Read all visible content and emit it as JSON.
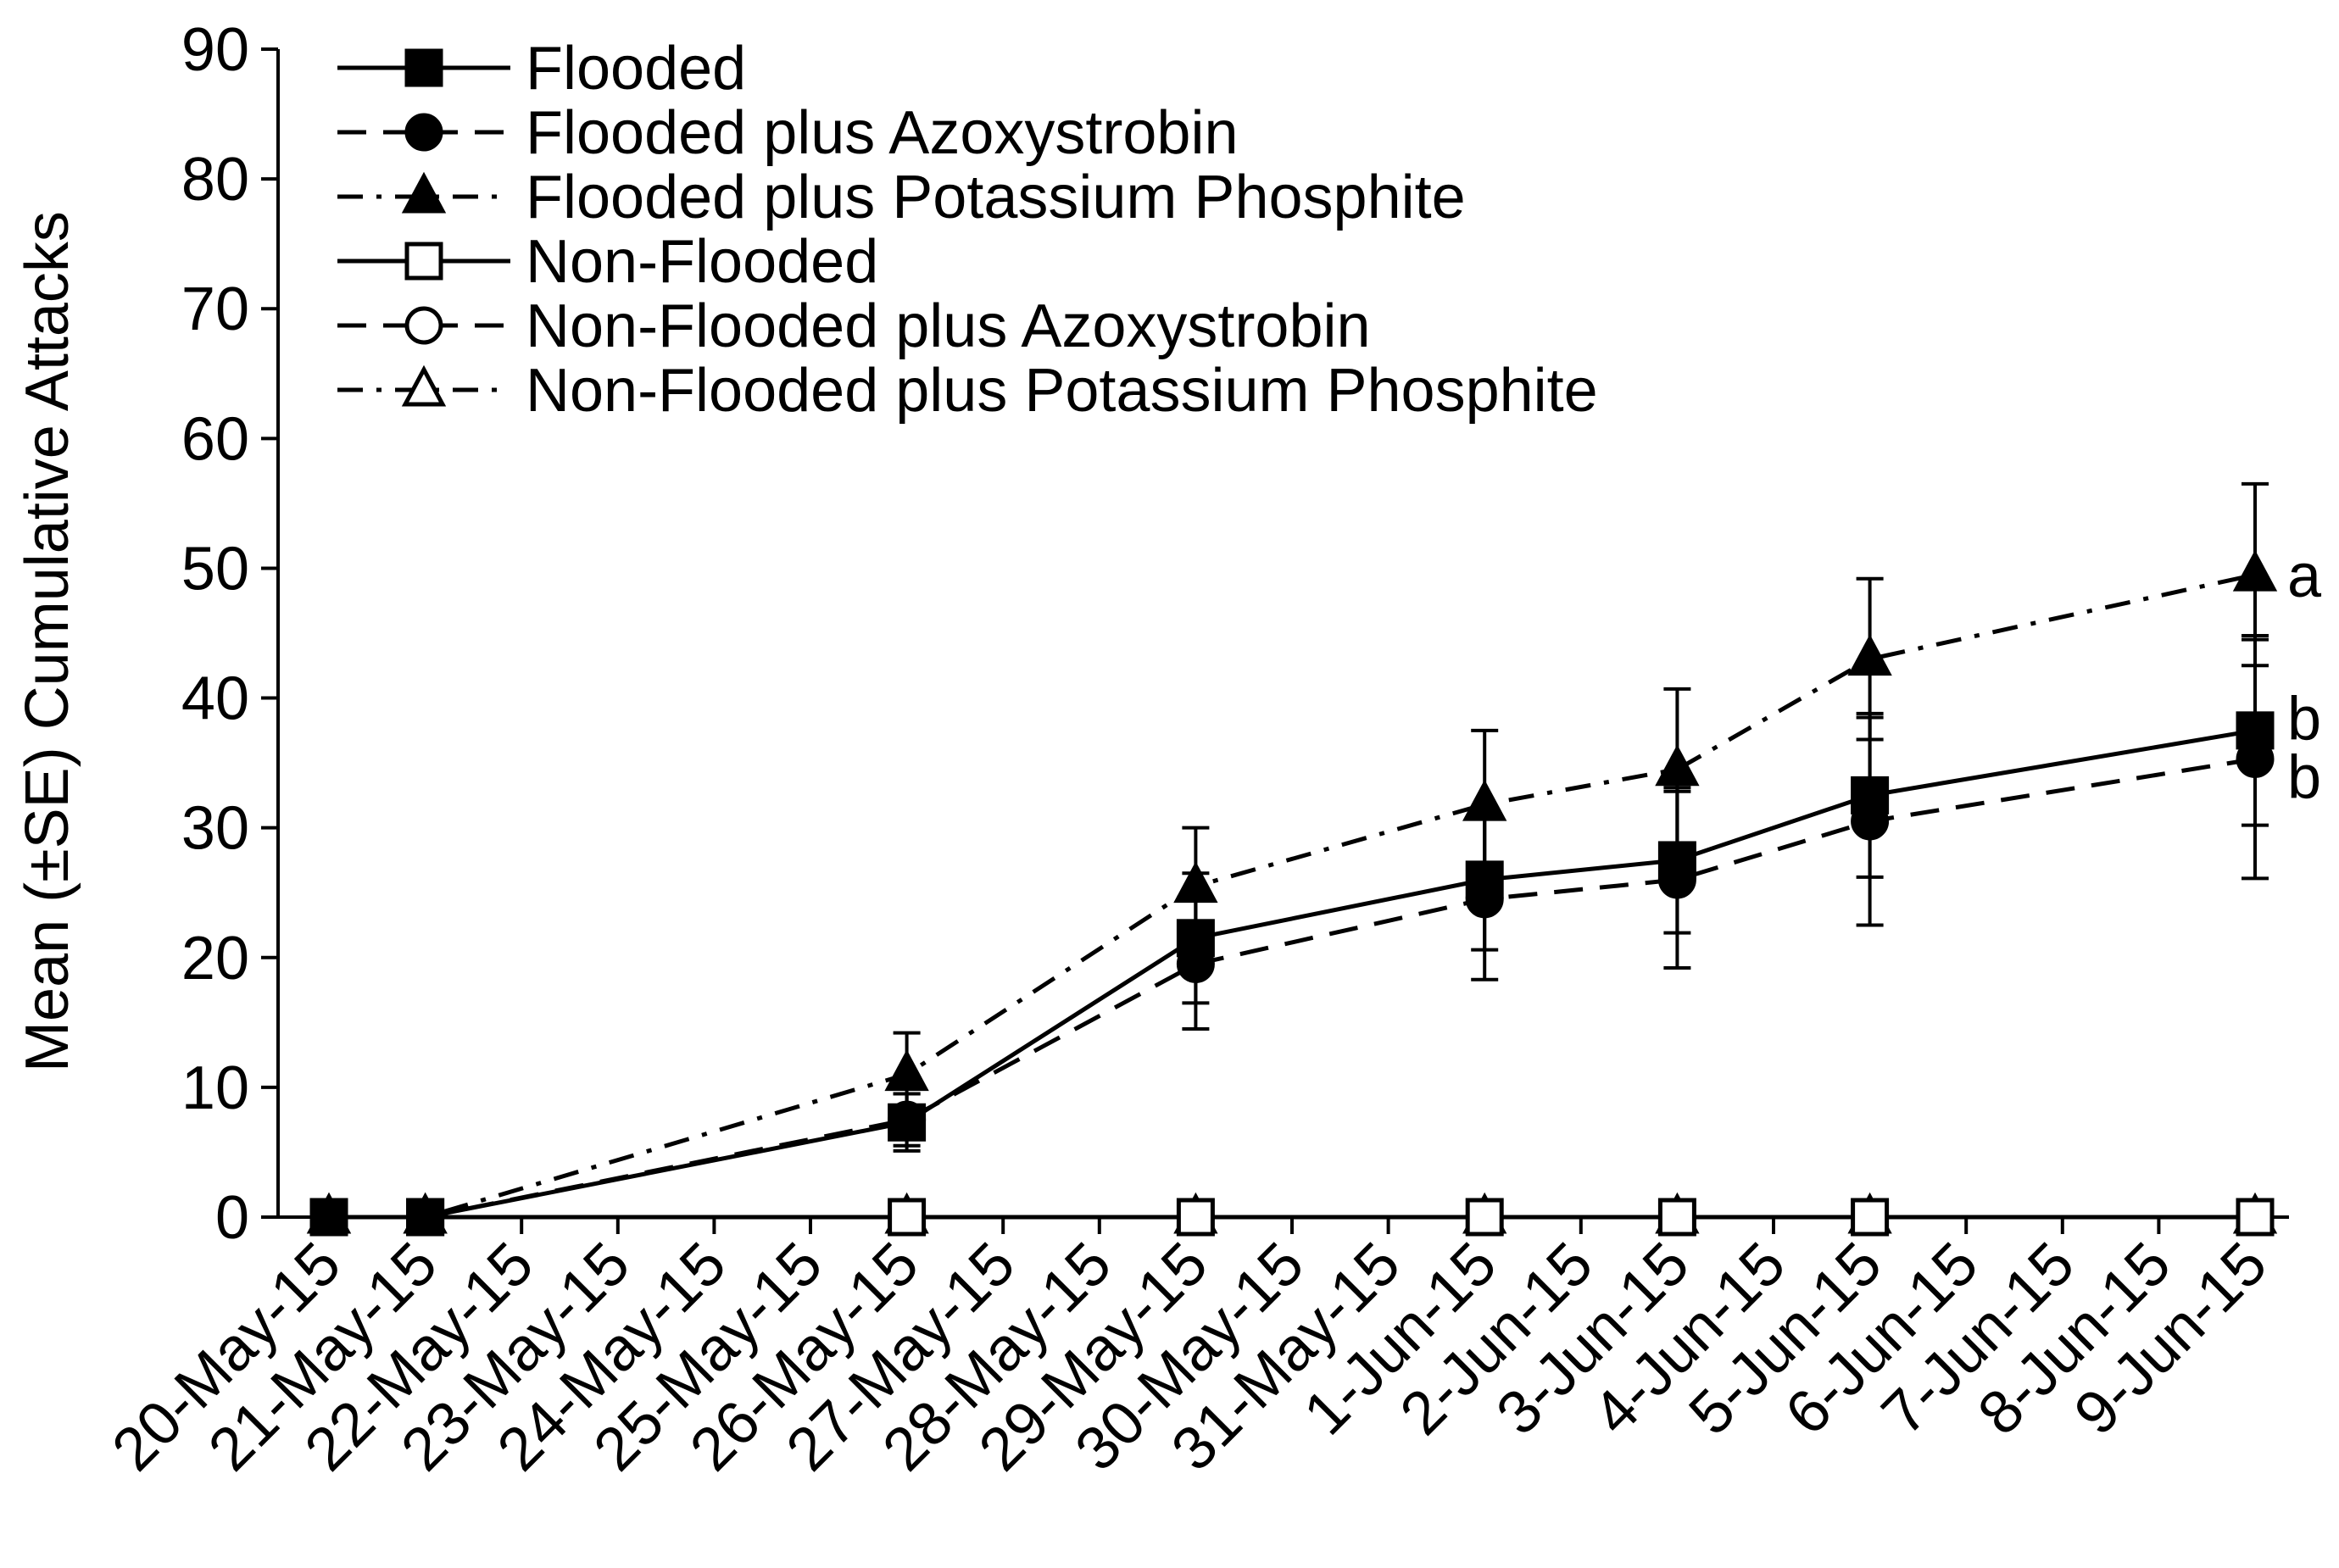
{
  "chart_data": {
    "type": "line",
    "title": "",
    "xlabel": "",
    "ylabel": "Mean (±SE) Cumulative Attacks",
    "ylim": [
      0,
      90
    ],
    "yticks": [
      0,
      10,
      20,
      30,
      40,
      50,
      60,
      70,
      80,
      90
    ],
    "categories": [
      "20-May-15",
      "21-May-15",
      "22-May-15",
      "23-May-15",
      "24-May-15",
      "25-May-15",
      "26-May-15",
      "27-May-15",
      "28-May-15",
      "29-May-15",
      "30-May-15",
      "31-May-15",
      "1-Jun-15",
      "2-Jun-15",
      "3-Jun-15",
      "4-Jun-15",
      "5-Jun-15",
      "6-Jun-15",
      "7-Jun-15",
      "8-Jun-15",
      "9-Jun-15"
    ],
    "series": [
      {
        "name": "Flooded",
        "line_style": "solid",
        "marker": "square-filled",
        "points": [
          {
            "x": "20-May-15",
            "y": 0
          },
          {
            "x": "21-May-15",
            "y": 0
          },
          {
            "x": "26-May-15",
            "y": 7.3,
            "se": 2.2
          },
          {
            "x": "29-May-15",
            "y": 21.5,
            "se": 5.0
          },
          {
            "x": "1-Jun-15",
            "y": 26.0,
            "se": 5.4
          },
          {
            "x": "3-Jun-15",
            "y": 27.5,
            "se": 5.6
          },
          {
            "x": "5-Jun-15",
            "y": 32.5,
            "se": 6.3
          },
          {
            "x": "9-Jun-15",
            "y": 37.5,
            "se": 7.3
          }
        ]
      },
      {
        "name": "Flooded plus Azoxystrobin",
        "line_style": "dashed",
        "marker": "circle-filled",
        "points": [
          {
            "x": "20-May-15",
            "y": 0
          },
          {
            "x": "21-May-15",
            "y": 0
          },
          {
            "x": "26-May-15",
            "y": 7.5,
            "se": 2.0
          },
          {
            "x": "29-May-15",
            "y": 19.5,
            "se": 5.0
          },
          {
            "x": "1-Jun-15",
            "y": 24.5,
            "se": 6.2
          },
          {
            "x": "3-Jun-15",
            "y": 26.0,
            "se": 6.8
          },
          {
            "x": "5-Jun-15",
            "y": 30.5,
            "se": 8.0
          },
          {
            "x": "9-Jun-15",
            "y": 35.3,
            "se": 9.2
          }
        ]
      },
      {
        "name": "Flooded plus Potassium Phosphite",
        "line_style": "dashdot",
        "marker": "triangle-filled",
        "points": [
          {
            "x": "20-May-15",
            "y": 0
          },
          {
            "x": "21-May-15",
            "y": 0
          },
          {
            "x": "26-May-15",
            "y": 11.0,
            "se": 3.2
          },
          {
            "x": "29-May-15",
            "y": 25.5,
            "se": 4.5
          },
          {
            "x": "1-Jun-15",
            "y": 31.8,
            "se": 5.7
          },
          {
            "x": "3-Jun-15",
            "y": 34.5,
            "se": 6.2
          },
          {
            "x": "5-Jun-15",
            "y": 43.0,
            "se": 6.2
          },
          {
            "x": "9-Jun-15",
            "y": 49.5,
            "se": 7.0
          }
        ]
      },
      {
        "name": "Non-Flooded",
        "line_style": "solid",
        "marker": "square-open",
        "points": [
          {
            "x": "20-May-15",
            "y": 0
          },
          {
            "x": "21-May-15",
            "y": 0
          },
          {
            "x": "26-May-15",
            "y": 0
          },
          {
            "x": "29-May-15",
            "y": 0
          },
          {
            "x": "1-Jun-15",
            "y": 0
          },
          {
            "x": "3-Jun-15",
            "y": 0
          },
          {
            "x": "5-Jun-15",
            "y": 0
          },
          {
            "x": "9-Jun-15",
            "y": 0
          }
        ]
      },
      {
        "name": "Non-Flooded plus Azoxystrobin",
        "line_style": "dashed",
        "marker": "circle-open",
        "points": [
          {
            "x": "20-May-15",
            "y": 0
          },
          {
            "x": "21-May-15",
            "y": 0
          },
          {
            "x": "26-May-15",
            "y": 0
          },
          {
            "x": "29-May-15",
            "y": 0
          },
          {
            "x": "1-Jun-15",
            "y": 0
          },
          {
            "x": "3-Jun-15",
            "y": 0
          },
          {
            "x": "5-Jun-15",
            "y": 0
          },
          {
            "x": "9-Jun-15",
            "y": 0
          }
        ]
      },
      {
        "name": "Non-Flooded plus Potassium Phosphite",
        "line_style": "dashdot",
        "marker": "triangle-open",
        "points": [
          {
            "x": "20-May-15",
            "y": 0
          },
          {
            "x": "21-May-15",
            "y": 0
          },
          {
            "x": "26-May-15",
            "y": 0
          },
          {
            "x": "29-May-15",
            "y": 0
          },
          {
            "x": "1-Jun-15",
            "y": 0
          },
          {
            "x": "3-Jun-15",
            "y": 0
          },
          {
            "x": "5-Jun-15",
            "y": 0
          },
          {
            "x": "9-Jun-15",
            "y": 0
          }
        ]
      }
    ],
    "annotations": [
      {
        "text": "a",
        "x": "9-Jun-15",
        "y": 49.5
      },
      {
        "text": "b",
        "x": "9-Jun-15",
        "y": 38.5
      },
      {
        "text": "b",
        "x": "9-Jun-15",
        "y": 34.0
      }
    ],
    "legend": {
      "position": "top-left"
    },
    "grid": false
  }
}
